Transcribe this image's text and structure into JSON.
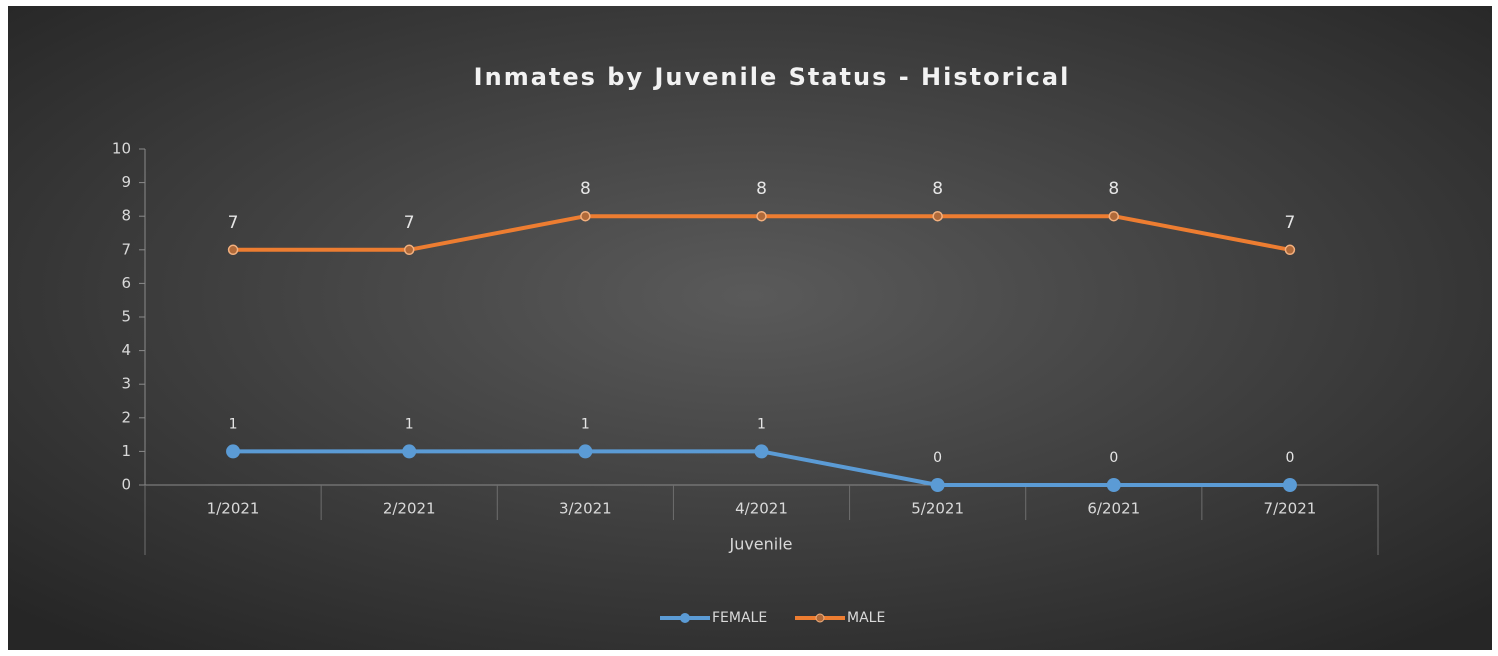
{
  "chart_data": {
    "type": "line",
    "title": "Inmates by Juvenile Status - Historical",
    "x_label": "Juvenile",
    "categories": [
      "1/2021",
      "2/2021",
      "3/2021",
      "4/2021",
      "5/2021",
      "6/2021",
      "7/2021"
    ],
    "series": [
      {
        "name": "FEMALE",
        "color": "#5b9bd5",
        "values": [
          1,
          1,
          1,
          1,
          0,
          0,
          0
        ]
      },
      {
        "name": "MALE",
        "color": "#ed7d31",
        "values": [
          7,
          7,
          8,
          8,
          8,
          8,
          7
        ]
      }
    ],
    "ylim": [
      0,
      10
    ],
    "yticks": [
      0,
      1,
      2,
      3,
      4,
      5,
      6,
      7,
      8,
      9,
      10
    ],
    "legend": "bottom"
  }
}
